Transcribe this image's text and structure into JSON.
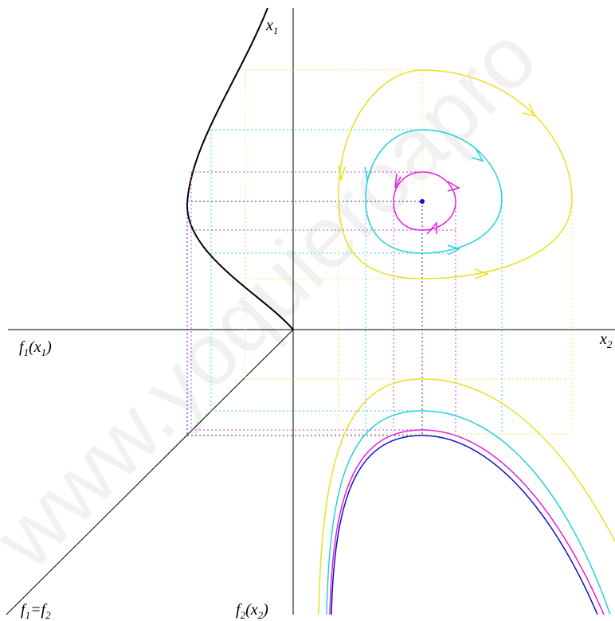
{
  "labels": [
    {
      "parts": [
        {
          "text": "x"
        },
        {
          "text": "1",
          "subscript": true
        }
      ]
    },
    {
      "parts": [
        {
          "text": "x"
        },
        {
          "text": "2",
          "subscript": true
        }
      ]
    },
    {
      "parts": [
        {
          "text": "f"
        },
        {
          "text": "1",
          "subscript": true
        },
        {
          "text": "(x"
        },
        {
          "text": "1",
          "subscript": true
        },
        {
          "text": ")"
        }
      ]
    },
    {
      "parts": [
        {
          "text": "f"
        },
        {
          "text": "2",
          "subscript": true
        },
        {
          "text": "(x"
        },
        {
          "text": "2",
          "subscript": true
        },
        {
          "text": ")"
        }
      ]
    },
    {
      "parts": [
        {
          "text": "f"
        },
        {
          "text": "1",
          "subscript": true
        },
        {
          "text": "=f"
        },
        {
          "text": "2",
          "subscript": true
        }
      ]
    }
  ],
  "watermark": "www.yoquieroapro"
}
